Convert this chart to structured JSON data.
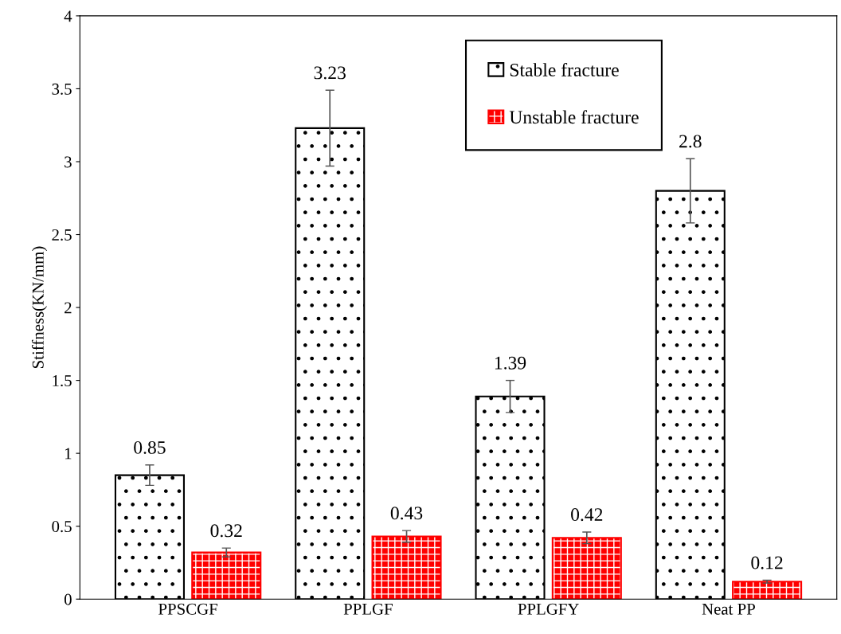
{
  "chart_data": {
    "type": "bar",
    "ylabel": "Stiffness(KN/mm)",
    "categories": [
      "PPSCGF",
      "PPLGF",
      "PPLGFY",
      "Neat PP"
    ],
    "series": [
      {
        "name": "Stable fracture",
        "color": "#000000",
        "values": [
          0.85,
          3.23,
          1.39,
          2.8
        ],
        "errors": [
          0.07,
          0.26,
          0.11,
          0.22
        ]
      },
      {
        "name": "Unstable fracture",
        "color": "#ff0000",
        "values": [
          0.32,
          0.43,
          0.42,
          0.12
        ],
        "errors": [
          0.03,
          0.04,
          0.04,
          0.01
        ]
      }
    ],
    "ylim": [
      0,
      4
    ],
    "yticks": [
      0,
      0.5,
      1,
      1.5,
      2,
      2.5,
      3,
      3.5,
      4
    ],
    "data_labels": true,
    "legend": "top right",
    "grid": false
  }
}
